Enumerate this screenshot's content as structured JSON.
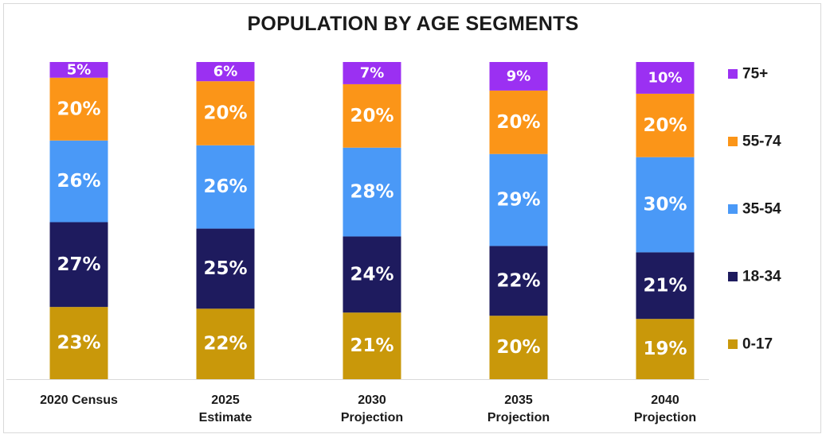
{
  "chart_data": {
    "type": "bar",
    "stacked": true,
    "title": "POPULATION BY AGE SEGMENTS",
    "categories": [
      [
        "2020 Census"
      ],
      [
        "2025",
        "Estimate"
      ],
      [
        "2030",
        "Projection"
      ],
      [
        "2035",
        "Projection"
      ],
      [
        "2040",
        "Projection"
      ]
    ],
    "series": [
      {
        "name": "0-17",
        "color": "#C9980A",
        "values": [
          23,
          22,
          21,
          20,
          19
        ],
        "labels": [
          "23%",
          "22%",
          "21%",
          "20%",
          "19%"
        ]
      },
      {
        "name": "18-34",
        "color": "#1E1B5E",
        "values": [
          27,
          25,
          24,
          22,
          21
        ],
        "labels": [
          "27%",
          "25%",
          "24%",
          "22%",
          "21%"
        ]
      },
      {
        "name": "35-54",
        "color": "#4A99F7",
        "values": [
          26,
          26,
          28,
          29,
          30
        ],
        "labels": [
          "26%",
          "26%",
          "28%",
          "29%",
          "30%"
        ]
      },
      {
        "name": "55-74",
        "color": "#FB9518",
        "values": [
          20,
          20,
          20,
          20,
          20
        ],
        "labels": [
          "20%",
          "20%",
          "20%",
          "20%",
          "20%"
        ]
      },
      {
        "name": "75+",
        "color": "#9B30F2",
        "values": [
          5,
          6,
          7,
          9,
          10
        ],
        "labels": [
          "5%",
          "6%",
          "7%",
          "9%",
          "10%"
        ]
      }
    ],
    "legend_position": "right",
    "grid": false
  }
}
